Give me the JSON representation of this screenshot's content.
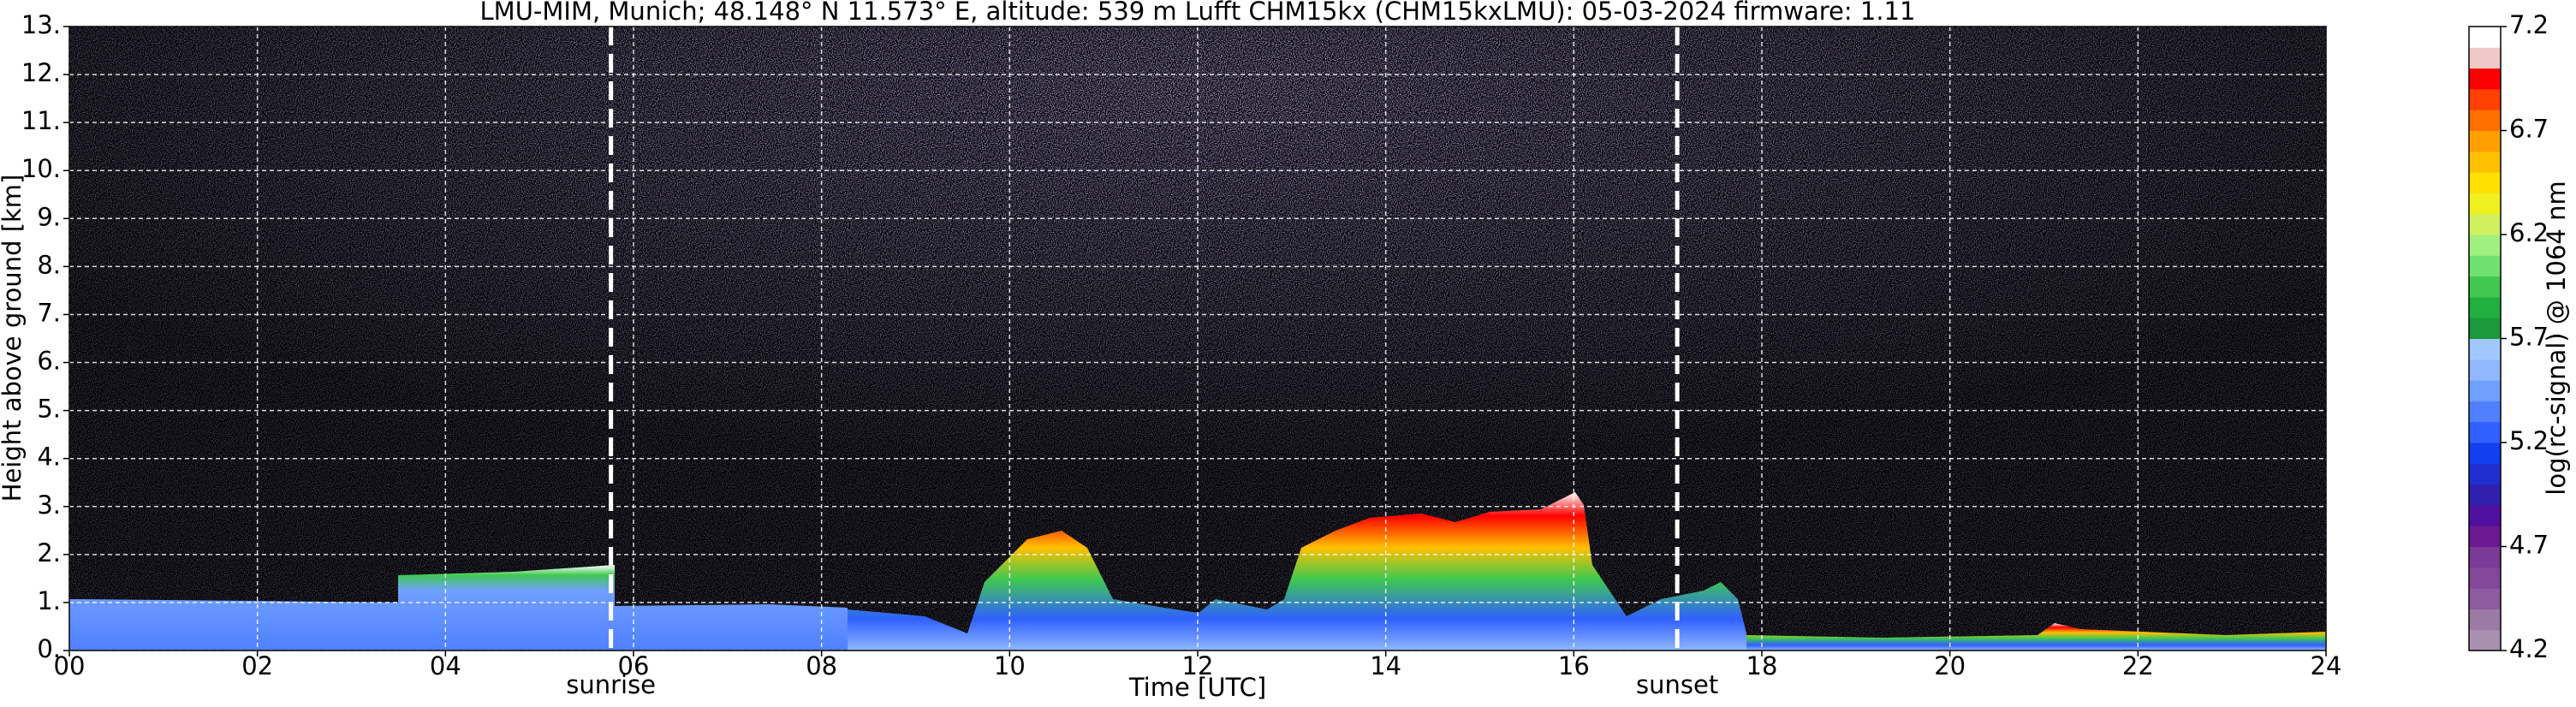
{
  "chart_data": {
    "type": "heatmap",
    "title": "LMU-MIM, Munich; 48.148° N 11.573° E, altitude: 539 m    Lufft CHM15kx (CHM15kxLMU): 05-03-2024    firmware: 1.11",
    "x_label": "Time [UTC]",
    "y_label": "Height above ground [km]",
    "xlim": [
      0,
      24
    ],
    "xticks": [
      {
        "value": 0,
        "label": "00"
      },
      {
        "value": 2,
        "label": "02"
      },
      {
        "value": 4,
        "label": "04"
      },
      {
        "value": 6,
        "label": "06"
      },
      {
        "value": 8,
        "label": "08"
      },
      {
        "value": 10,
        "label": "10"
      },
      {
        "value": 12,
        "label": "12"
      },
      {
        "value": 14,
        "label": "14"
      },
      {
        "value": 16,
        "label": "16"
      },
      {
        "value": 18,
        "label": "18"
      },
      {
        "value": 20,
        "label": "20"
      },
      {
        "value": 22,
        "label": "22"
      },
      {
        "value": 24,
        "label": "24"
      }
    ],
    "ylim": [
      0,
      13
    ],
    "yticks": [
      {
        "value": 0,
        "label": "0."
      },
      {
        "value": 1,
        "label": "1."
      },
      {
        "value": 2,
        "label": "2."
      },
      {
        "value": 3,
        "label": "3."
      },
      {
        "value": 4,
        "label": "4."
      },
      {
        "value": 5,
        "label": "5."
      },
      {
        "value": 6,
        "label": "6."
      },
      {
        "value": 7,
        "label": "7."
      },
      {
        "value": 8,
        "label": "8."
      },
      {
        "value": 9,
        "label": "9."
      },
      {
        "value": 10,
        "label": "10."
      },
      {
        "value": 11,
        "label": "11."
      },
      {
        "value": 12,
        "label": "12."
      },
      {
        "value": 13,
        "label": "13."
      }
    ],
    "grid": true,
    "annotations": [
      {
        "text": "sunrise",
        "x": 5.76
      },
      {
        "text": "sunset",
        "x": 17.1
      }
    ],
    "colorbar": {
      "label": "log(rc-signal) @ 1064 nm",
      "clim": [
        4.2,
        7.2
      ],
      "ticks": [
        4.2,
        4.7,
        5.2,
        5.7,
        6.2,
        6.7,
        7.2
      ],
      "colors": [
        "#a890b0",
        "#9b7aa6",
        "#8e5aa0",
        "#84489a",
        "#7a3a96",
        "#6a1a8e",
        "#5010a0",
        "#3020b0",
        "#2030d0",
        "#1040f0",
        "#3060ff",
        "#5080ff",
        "#70a0ff",
        "#90b8ff",
        "#a0c8ff",
        "#1a9a3a",
        "#20b040",
        "#40c850",
        "#70e070",
        "#a0f080",
        "#d0f060",
        "#f0f020",
        "#ffe000",
        "#ffc000",
        "#ffa000",
        "#ff7000",
        "#ff4000",
        "#ff0000",
        "#f0c8c8",
        "#ffffff"
      ]
    }
  }
}
